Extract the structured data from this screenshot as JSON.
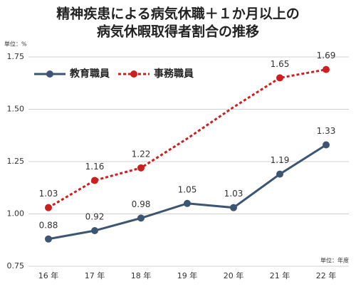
{
  "chart_data": {
    "type": "line",
    "title": [
      "精神疾患による病気休職＋１か月以上の",
      "病気休暇取得者割合の推移"
    ],
    "y_unit": "単位：%",
    "x_unit": "単位：年度",
    "categories": [
      "16 年",
      "17 年",
      "18 年",
      "19 年",
      "20 年",
      "21 年",
      "22 年"
    ],
    "series": [
      {
        "name": "教育職員",
        "color": "#3b5573",
        "style": "solid",
        "values": [
          0.88,
          0.92,
          0.98,
          1.05,
          1.03,
          1.19,
          1.33
        ],
        "value_labels": [
          "0.88",
          "0.92",
          "0.98",
          "1.05",
          "1.03",
          "1.19",
          "1.33"
        ]
      },
      {
        "name": "事務職員",
        "color": "#cc1f1f",
        "style": "dashed",
        "values": [
          1.03,
          1.16,
          1.22,
          1.36,
          1.51,
          1.65,
          1.69
        ],
        "value_labels": [
          "1.03",
          "1.16",
          "1.22",
          null,
          null,
          "1.65",
          "1.69"
        ]
      }
    ],
    "ylim": [
      0.75,
      1.75
    ],
    "yticks": [
      {
        "value": 0.75,
        "label": "0.75"
      },
      {
        "value": 1.0,
        "label": "1.00"
      },
      {
        "value": 1.25,
        "label": "1.25"
      },
      {
        "value": 1.5,
        "label": "1.50"
      },
      {
        "value": 1.75,
        "label": "1.75"
      }
    ],
    "grid": true,
    "legend": "top-left"
  }
}
